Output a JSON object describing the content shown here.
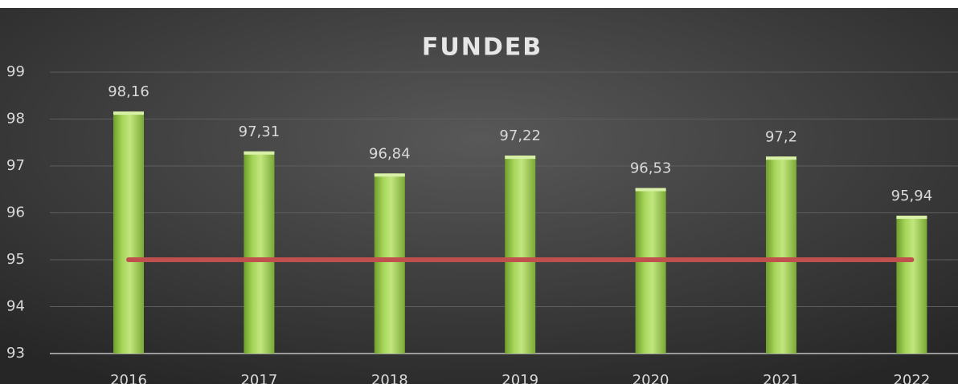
{
  "chart_data": {
    "type": "bar",
    "title": "FUNDEB",
    "categories": [
      "2016",
      "2017",
      "2018",
      "2019",
      "2020",
      "2021",
      "2022"
    ],
    "series": [
      {
        "color": "#92d050",
        "values": [
          98.16,
          97.31,
          96.84,
          97.22,
          96.53,
          97.2,
          95.94
        ],
        "value_labels": [
          "98,16",
          "97,31",
          "96,84",
          "97,22",
          "96,53",
          "97,2",
          "95,94"
        ]
      },
      {
        "type": "line",
        "color": "#c0504d",
        "values": [
          95,
          95,
          95,
          95,
          95,
          95,
          95
        ]
      }
    ],
    "ylim": [
      93,
      99
    ],
    "yticks": [
      93,
      94,
      95,
      96,
      97,
      98,
      99
    ],
    "grid": true
  }
}
